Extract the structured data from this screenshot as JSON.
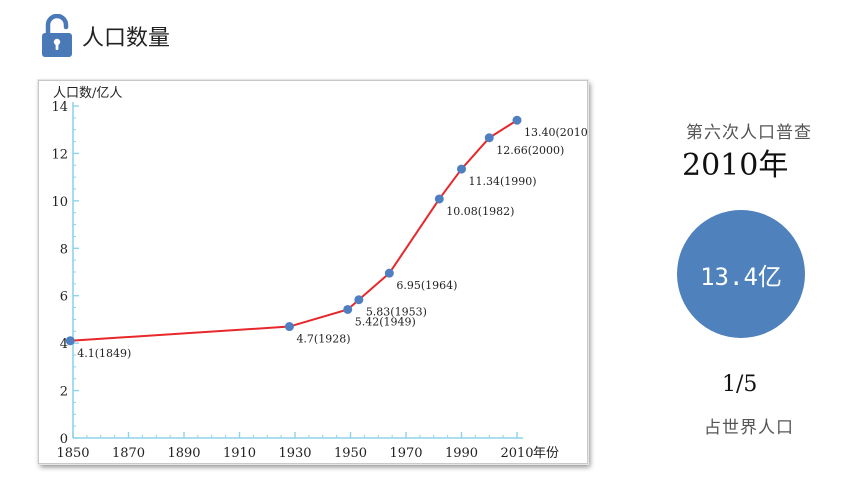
{
  "header": {
    "title": "人口数量",
    "icon": "lock-open-icon",
    "icon_color": "#4a79b8"
  },
  "chart_data": {
    "type": "line",
    "ylabel": "人口数/亿人",
    "xlabel": "年份",
    "xlim": [
      1850,
      2010
    ],
    "ylim": [
      0,
      14
    ],
    "x_ticks": [
      "1850",
      "1870",
      "1890",
      "1910",
      "1930",
      "1950",
      "1970",
      "1990",
      "2010"
    ],
    "y_ticks": [
      "0",
      "2",
      "4",
      "6",
      "8",
      "10",
      "12",
      "14"
    ],
    "grid": false,
    "line_color": "#e8272a",
    "marker_color": "#4f7fc1",
    "points": [
      {
        "x": 1849,
        "y": 4.1,
        "label": "4.1(1849)"
      },
      {
        "x": 1928,
        "y": 4.7,
        "label": "4.7(1928)"
      },
      {
        "x": 1949,
        "y": 5.42,
        "label": "5.42(1949)"
      },
      {
        "x": 1953,
        "y": 5.83,
        "label": "5.83(1953)"
      },
      {
        "x": 1964,
        "y": 6.95,
        "label": "6.95(1964)"
      },
      {
        "x": 1982,
        "y": 10.08,
        "label": "10.08(1982)"
      },
      {
        "x": 1990,
        "y": 11.34,
        "label": "11.34(1990)"
      },
      {
        "x": 2000,
        "y": 12.66,
        "label": "12.66(2000)"
      },
      {
        "x": 2010,
        "y": 13.4,
        "label": "13.40(2010)"
      }
    ]
  },
  "summary": {
    "census_label": "第六次人口普查",
    "census_year": "2010年",
    "population": "13.4亿",
    "circle_color": "#4f81bd",
    "fraction": "1/5",
    "world_label": "占世界人口"
  }
}
